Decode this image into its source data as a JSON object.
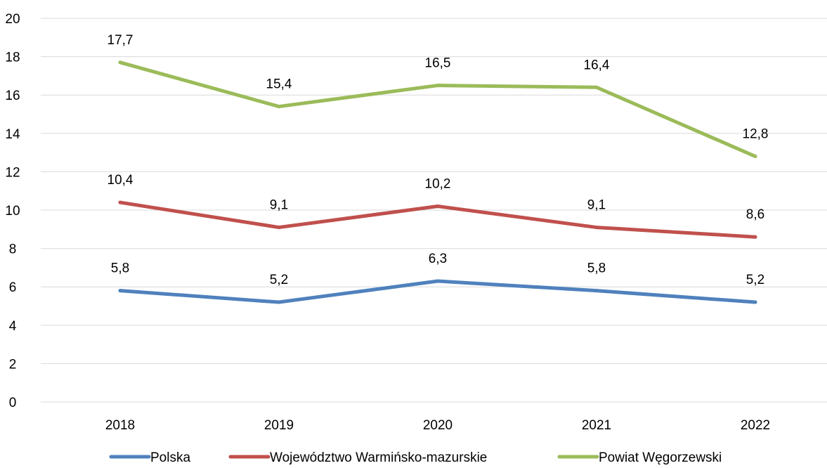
{
  "chart_data": {
    "type": "line",
    "title": "",
    "xlabel": "",
    "ylabel": "",
    "categories": [
      "2018",
      "2019",
      "2020",
      "2021",
      "2022"
    ],
    "ylim": [
      0,
      20
    ],
    "yticks": [
      "0",
      "2",
      "4",
      "6",
      "8",
      "10",
      "12",
      "14",
      "16",
      "18",
      "20"
    ],
    "grid": true,
    "legend_position": "bottom",
    "series": [
      {
        "name": "Polska",
        "color": "#4f81bd",
        "values": [
          5.8,
          5.2,
          6.3,
          5.8,
          5.2
        ],
        "labels": [
          "5,8",
          "5,2",
          "6,3",
          "5,8",
          "5,2"
        ]
      },
      {
        "name": "Województwo Warmińsko-mazurskie",
        "color": "#c0504d",
        "values": [
          10.4,
          9.1,
          10.2,
          9.1,
          8.6
        ],
        "labels": [
          "10,4",
          "9,1",
          "10,2",
          "9,1",
          "8,6"
        ]
      },
      {
        "name": "Powiat Węgorzewski",
        "color": "#9bbb59",
        "values": [
          17.7,
          15.4,
          16.5,
          16.4,
          12.8
        ],
        "labels": [
          "17,7",
          "15,4",
          "16,5",
          "16,4",
          "12,8"
        ]
      }
    ]
  }
}
